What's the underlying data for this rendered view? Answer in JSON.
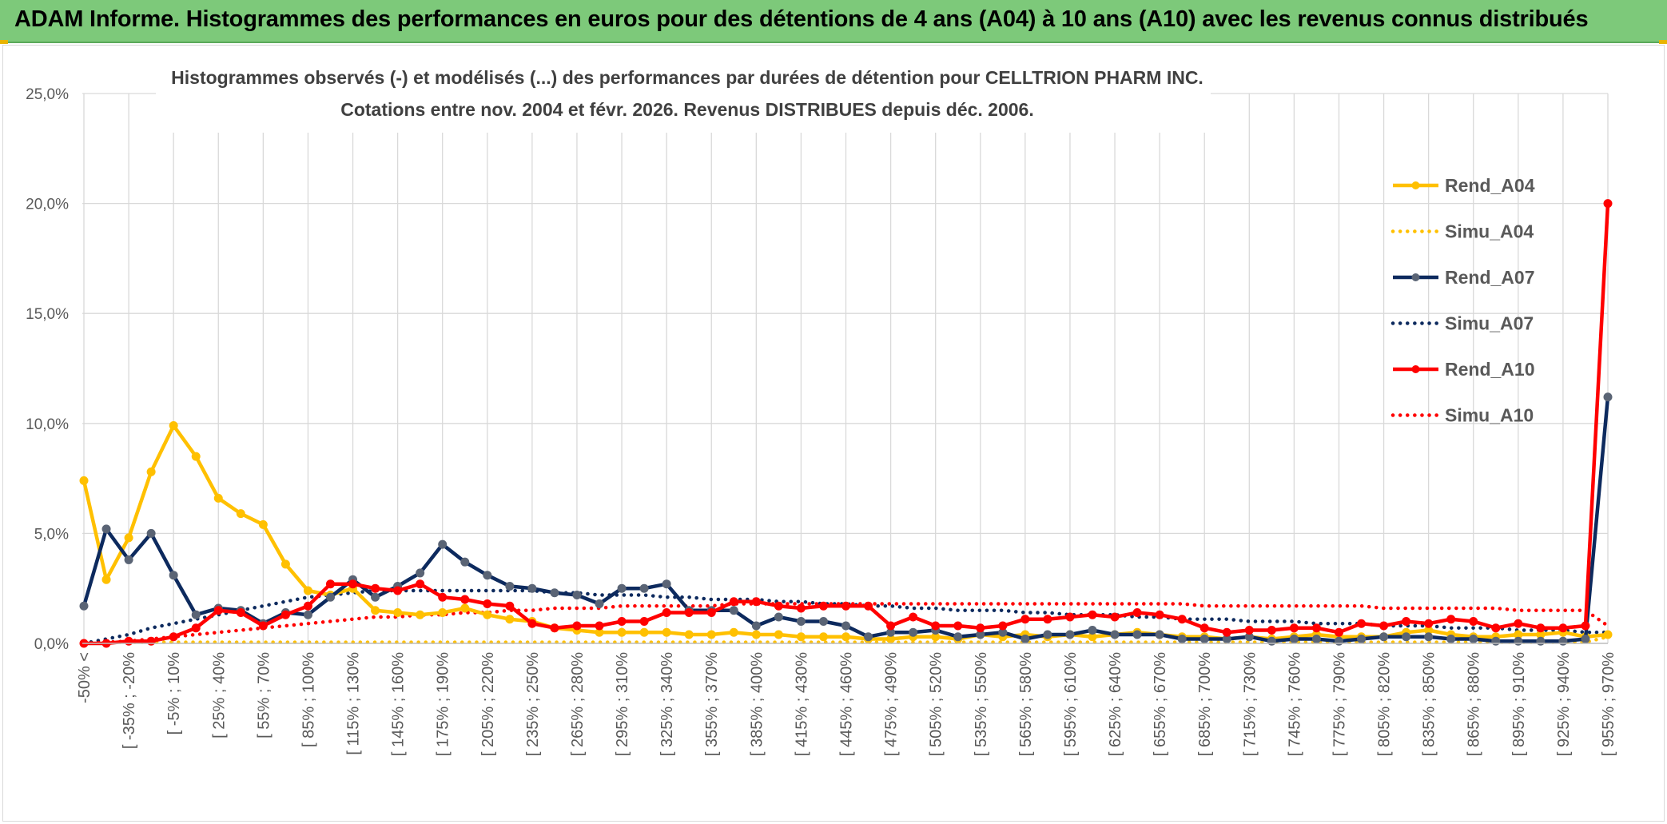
{
  "header": {
    "title": "ADAM Informe. Histogrammes des performances en euros pour des détentions de 4 ans (A04) à 10 ans (A10) avec les revenus connus distribués"
  },
  "colors": {
    "banner": "#7dc97a",
    "A04": "#ffc000",
    "A07": "#0d2a5e",
    "A07_marker": "#5a6475",
    "A10": "#ff0000",
    "grid": "#d9d9d9"
  },
  "chart_data": {
    "type": "line",
    "title_line1": "Histogrammes observés (-) et modélisés (...) des performances par durées de détention pour CELLTRION PHARM INC.",
    "title_line2": "Cotations entre nov. 2004 et févr. 2026. Revenus DISTRIBUES depuis déc. 2006.",
    "xlabel": "",
    "ylabel": "",
    "ylim": [
      0,
      25
    ],
    "y_ticks": [
      "0,0%",
      "5,0%",
      "10,0%",
      "15,0%",
      "20,0%",
      "25,0%"
    ],
    "x_tick_labels": [
      "-50% <",
      "[ -35% ; -20%",
      "[ -5% ; 10%",
      "[ 25% ; 40%",
      "[ 55% ; 70%",
      "[ 85% ; 100%",
      "[ 115% ; 130%",
      "[ 145% ; 160%",
      "[ 175% ; 190%",
      "[ 205% ; 220%",
      "[ 235% ; 250%",
      "[ 265% ; 280%",
      "[ 295% ; 310%",
      "[ 325% ; 340%",
      "[ 355% ; 370%",
      "[ 385% ; 400%",
      "[ 415% ; 430%",
      "[ 445% ; 460%",
      "[ 475% ; 490%",
      "[ 505% ; 520%",
      "[ 535% ; 550%",
      "[ 565% ; 580%",
      "[ 595% ; 610%",
      "[ 625% ; 640%",
      "[ 655% ; 670%",
      "[ 685% ; 700%",
      "[ 715% ; 730%",
      "[ 745% ; 760%",
      "[ 775% ; 790%",
      "[ 805% ; 820%",
      "[ 835% ; 850%",
      "[ 865% ; 880%",
      "[ 895% ; 910%",
      "[ 925% ; 940%",
      "[ 955% ; 970%"
    ],
    "n_points": 69,
    "series": [
      {
        "name": "Rend_A04",
        "style": "solid",
        "values": [
          7.4,
          2.9,
          4.8,
          7.8,
          9.9,
          8.5,
          6.6,
          5.9,
          5.4,
          3.6,
          2.4,
          2.2,
          2.5,
          1.5,
          1.4,
          1.3,
          1.4,
          1.6,
          1.3,
          1.1,
          1.0,
          0.7,
          0.6,
          0.5,
          0.5,
          0.5,
          0.5,
          0.4,
          0.4,
          0.5,
          0.4,
          0.4,
          0.3,
          0.3,
          0.3,
          0.2,
          0.2,
          0.3,
          0.3,
          0.2,
          0.4,
          0.3,
          0.4,
          0.3,
          0.4,
          0.3,
          0.4,
          0.5,
          0.4,
          0.3,
          0.3,
          0.2,
          0.3,
          0.2,
          0.3,
          0.4,
          0.3,
          0.3,
          0.3,
          0.5,
          0.6,
          0.4,
          0.3,
          0.3,
          0.4,
          0.4,
          0.5,
          0.3,
          0.4
        ]
      },
      {
        "name": "Simu_A04",
        "style": "dotted",
        "values": [
          0.05,
          0.05,
          0.05,
          0.05,
          0.05,
          0.05,
          0.05,
          0.05,
          0.05,
          0.05,
          0.05,
          0.05,
          0.05,
          0.05,
          0.05,
          0.05,
          0.05,
          0.05,
          0.05,
          0.05,
          0.05,
          0.05,
          0.05,
          0.05,
          0.05,
          0.05,
          0.05,
          0.05,
          0.05,
          0.05,
          0.05,
          0.05,
          0.05,
          0.05,
          0.05,
          0.05,
          0.05,
          0.05,
          0.05,
          0.05,
          0.05,
          0.05,
          0.05,
          0.05,
          0.05,
          0.05,
          0.05,
          0.05,
          0.05,
          0.05,
          0.05,
          0.05,
          0.05,
          0.05,
          0.05,
          0.05,
          0.05,
          0.05,
          0.05,
          0.05,
          0.05,
          0.05,
          0.05,
          0.05,
          0.05,
          0.05,
          0.05,
          0.05,
          0.3
        ]
      },
      {
        "name": "Rend_A07",
        "style": "solid",
        "values": [
          1.7,
          5.2,
          3.8,
          5.0,
          3.1,
          1.3,
          1.6,
          1.5,
          0.9,
          1.4,
          1.3,
          2.1,
          2.9,
          2.1,
          2.6,
          3.2,
          4.5,
          3.7,
          3.1,
          2.6,
          2.5,
          2.3,
          2.2,
          1.8,
          2.5,
          2.5,
          2.7,
          1.5,
          1.5,
          1.5,
          0.8,
          1.2,
          1.0,
          1.0,
          0.8,
          0.3,
          0.5,
          0.5,
          0.6,
          0.3,
          0.4,
          0.5,
          0.2,
          0.4,
          0.4,
          0.6,
          0.4,
          0.4,
          0.4,
          0.2,
          0.2,
          0.2,
          0.3,
          0.1,
          0.2,
          0.2,
          0.1,
          0.2,
          0.3,
          0.3,
          0.3,
          0.2,
          0.2,
          0.1,
          0.1,
          0.1,
          0.1,
          0.2,
          11.2
        ]
      },
      {
        "name": "Simu_A07",
        "style": "dotted",
        "values": [
          0.0,
          0.2,
          0.4,
          0.7,
          0.9,
          1.1,
          1.3,
          1.5,
          1.7,
          1.9,
          2.1,
          2.2,
          2.3,
          2.4,
          2.4,
          2.4,
          2.4,
          2.4,
          2.4,
          2.4,
          2.4,
          2.3,
          2.3,
          2.2,
          2.2,
          2.2,
          2.1,
          2.1,
          2.0,
          2.0,
          2.0,
          1.9,
          1.9,
          1.8,
          1.8,
          1.7,
          1.7,
          1.6,
          1.6,
          1.5,
          1.5,
          1.5,
          1.4,
          1.4,
          1.3,
          1.3,
          1.3,
          1.2,
          1.2,
          1.1,
          1.1,
          1.1,
          1.0,
          1.0,
          1.0,
          0.9,
          0.9,
          0.9,
          0.8,
          0.8,
          0.8,
          0.7,
          0.7,
          0.7,
          0.6,
          0.6,
          0.6,
          0.5,
          0.5
        ]
      },
      {
        "name": "Rend_A10",
        "style": "solid",
        "values": [
          0.0,
          0.0,
          0.1,
          0.1,
          0.3,
          0.7,
          1.5,
          1.4,
          0.8,
          1.3,
          1.7,
          2.7,
          2.7,
          2.5,
          2.4,
          2.7,
          2.1,
          2.0,
          1.8,
          1.7,
          0.9,
          0.7,
          0.8,
          0.8,
          1.0,
          1.0,
          1.4,
          1.4,
          1.4,
          1.9,
          1.9,
          1.7,
          1.6,
          1.7,
          1.7,
          1.7,
          0.8,
          1.2,
          0.8,
          0.8,
          0.7,
          0.8,
          1.1,
          1.1,
          1.2,
          1.3,
          1.2,
          1.4,
          1.3,
          1.1,
          0.7,
          0.5,
          0.6,
          0.6,
          0.7,
          0.7,
          0.5,
          0.9,
          0.8,
          1.0,
          0.9,
          1.1,
          1.0,
          0.7,
          0.9,
          0.7,
          0.7,
          0.8,
          20.0
        ]
      },
      {
        "name": "Simu_A10",
        "style": "dotted",
        "values": [
          0.0,
          0.05,
          0.1,
          0.2,
          0.3,
          0.4,
          0.5,
          0.6,
          0.7,
          0.8,
          0.9,
          1.0,
          1.1,
          1.2,
          1.2,
          1.3,
          1.3,
          1.4,
          1.4,
          1.5,
          1.5,
          1.6,
          1.6,
          1.6,
          1.7,
          1.7,
          1.7,
          1.7,
          1.7,
          1.8,
          1.8,
          1.8,
          1.8,
          1.8,
          1.8,
          1.8,
          1.8,
          1.8,
          1.8,
          1.8,
          1.8,
          1.8,
          1.8,
          1.8,
          1.8,
          1.8,
          1.8,
          1.8,
          1.8,
          1.8,
          1.7,
          1.7,
          1.7,
          1.7,
          1.7,
          1.7,
          1.7,
          1.7,
          1.6,
          1.6,
          1.6,
          1.6,
          1.6,
          1.6,
          1.5,
          1.5,
          1.5,
          1.5,
          0.8
        ]
      }
    ],
    "legend": [
      "Rend_A04",
      "Simu_A04",
      "Rend_A07",
      "Simu_A07",
      "Rend_A10",
      "Simu_A10"
    ],
    "legend_position": "right",
    "grid": true
  }
}
